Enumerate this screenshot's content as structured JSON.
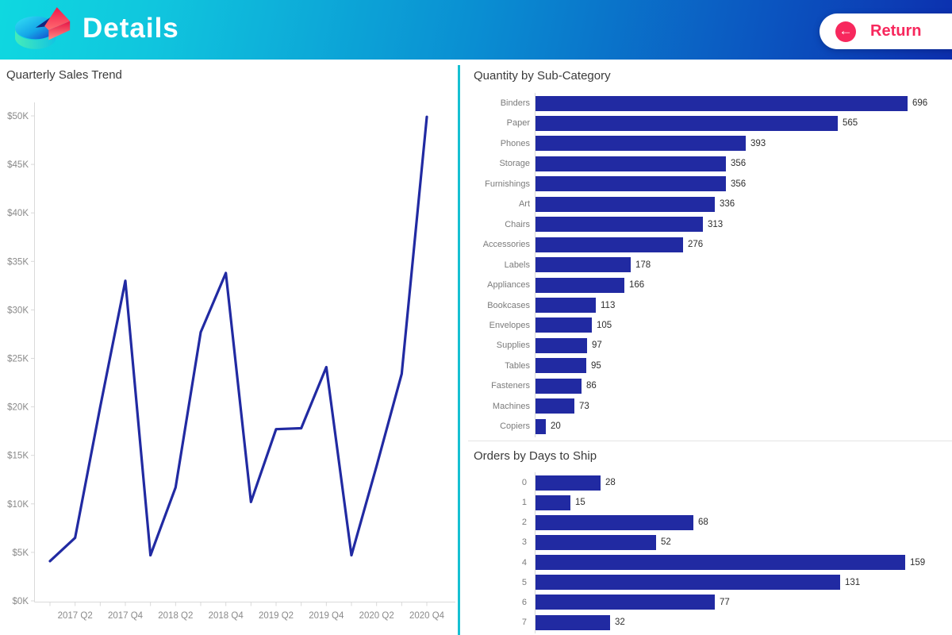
{
  "header": {
    "app_title": "Details",
    "return_button": {
      "label": "Return",
      "accent_color": "#f7285d"
    },
    "icons": {
      "logo": "pie-chart-logo-icon",
      "return_arrow": "arrow-left-icon"
    }
  },
  "colors": {
    "mark_blue": "#212aa2",
    "divider_teal": "#16c0d2",
    "axis_gray": "#d9d9d9",
    "label_gray": "#7b7b7b",
    "value_text": "#2e2e2e",
    "header_gradient": [
      "#0fd8e0",
      "#0a8ed2",
      "#0c2fae"
    ]
  },
  "chart_data": [
    {
      "id": "quarterly-sales-trend",
      "type": "line",
      "title": "Quarterly Sales Trend",
      "x": [
        "2017 Q1",
        "2017 Q2",
        "2017 Q3",
        "2017 Q4",
        "2018 Q1",
        "2018 Q2",
        "2018 Q3",
        "2018 Q4",
        "2019 Q1",
        "2019 Q2",
        "2019 Q3",
        "2019 Q4",
        "2020 Q1",
        "2020 Q2",
        "2020 Q3",
        "2020 Q4"
      ],
      "values_usd_k": [
        4.1,
        6.5,
        20.0,
        33.0,
        4.7,
        11.7,
        27.7,
        33.8,
        10.2,
        17.7,
        17.8,
        24.1,
        4.7,
        13.9,
        23.4,
        49.9
      ],
      "x_tick_labels": [
        "2017 Q2",
        "2017 Q4",
        "2018 Q2",
        "2018 Q4",
        "2019 Q2",
        "2019 Q4",
        "2020 Q2",
        "2020 Q4"
      ],
      "y_tick_labels": [
        "$0K",
        "$5K",
        "$10K",
        "$15K",
        "$20K",
        "$25K",
        "$30K",
        "$35K",
        "$40K",
        "$45K",
        "$50K"
      ],
      "ylim_usd_k": [
        0,
        50
      ],
      "grid": false,
      "legend": "none",
      "line_color": "#212aa2"
    },
    {
      "id": "quantity-by-sub-category",
      "type": "bar",
      "orientation": "horizontal",
      "title": "Quantity by Sub-Category",
      "categories": [
        "Binders",
        "Paper",
        "Phones",
        "Storage",
        "Furnishings",
        "Art",
        "Chairs",
        "Accessories",
        "Labels",
        "Appliances",
        "Bookcases",
        "Envelopes",
        "Supplies",
        "Tables",
        "Fasteners",
        "Machines",
        "Copiers"
      ],
      "values": [
        696,
        565,
        393,
        356,
        356,
        336,
        313,
        276,
        178,
        166,
        113,
        105,
        97,
        95,
        86,
        73,
        20
      ],
      "value_labels": true,
      "bar_color": "#212aa2"
    },
    {
      "id": "orders-by-days-to-ship",
      "type": "bar",
      "orientation": "horizontal",
      "title": "Orders by Days to Ship",
      "categories": [
        "0",
        "1",
        "2",
        "3",
        "4",
        "5",
        "6",
        "7"
      ],
      "values": [
        28,
        15,
        68,
        52,
        159,
        131,
        77,
        32
      ],
      "value_labels": true,
      "bar_color": "#212aa2"
    }
  ]
}
